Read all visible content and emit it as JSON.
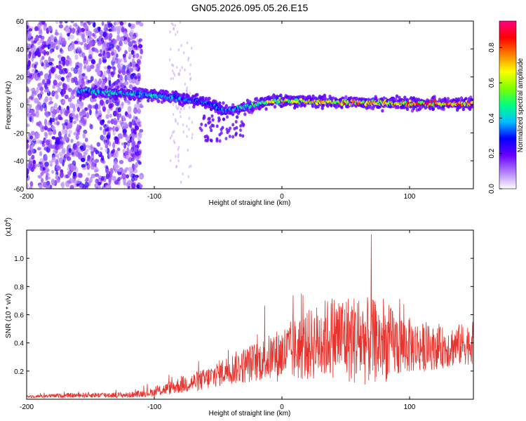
{
  "title": "GN05.2026.095.05.26.E15",
  "colors": {
    "axis": "#000000",
    "snr_line": "#e8322c",
    "spec_dot_low": "#cc99ff",
    "spec_dot_mid": "#7a1fff",
    "spec_high": "#ff2020"
  },
  "chart_data": [
    {
      "type": "heatmap",
      "name": "spectrogram",
      "title": "GN05.2026.095.05.26.E15",
      "xlabel": "Height of straight line (km)",
      "ylabel": "Frequency (Hz)",
      "xlim": [
        -200,
        150
      ],
      "ylim": [
        -60,
        60
      ],
      "x_ticks": [
        -200,
        -100,
        0,
        100
      ],
      "x_tick_labels": [
        "-200",
        "-100",
        "0",
        "100"
      ],
      "y_ticks": [
        60,
        40,
        20,
        0,
        -20,
        -40,
        -60
      ],
      "y_tick_labels": [
        "60",
        "40",
        "20",
        "0",
        "-20",
        "-40",
        "-60"
      ],
      "colorbar": {
        "label": "Normalized spectral amplitude",
        "range": [
          0,
          0.95
        ],
        "ticks": [
          0.0,
          0.2,
          0.4,
          0.6,
          0.8
        ],
        "tick_labels": [
          "0.0",
          "0.2",
          "0.4",
          "0.6",
          "0.8"
        ],
        "colormap": [
          "#ffffff",
          "#b07dff",
          "#6a00ff",
          "#0000ff",
          "#00c0ff",
          "#00ff80",
          "#80ff00",
          "#ffff00",
          "#ff8000",
          "#ff0000",
          "#ff0080"
        ]
      },
      "ridge": {
        "description_points_x": [
          -160,
          -140,
          -120,
          -100,
          -80,
          -60,
          -45,
          -30,
          -15,
          0,
          50,
          100,
          150
        ],
        "frequency_hz": [
          10,
          9,
          8,
          7,
          5,
          2,
          -4,
          -2,
          2,
          3,
          2,
          1,
          1
        ],
        "amplitude": [
          0.45,
          0.5,
          0.45,
          0.45,
          0.4,
          0.35,
          0.4,
          0.5,
          0.7,
          0.75,
          0.8,
          0.85,
          0.9
        ]
      },
      "noise_region_x": [
        -200,
        -110
      ]
    },
    {
      "type": "line",
      "name": "snr",
      "xlabel": "Height of straight line (km)",
      "ylabel": "SNR (10 * v/v)",
      "multiplier_label": "(x10",
      "multiplier_exponent": "4",
      "multiplier_close": ")",
      "xlim": [
        -200,
        150
      ],
      "ylim": [
        0,
        1.2
      ],
      "x_ticks": [
        -200,
        -100,
        0,
        100
      ],
      "x_tick_labels": [
        "-200",
        "-100",
        "0",
        "100"
      ],
      "y_ticks": [
        0.2,
        0.4,
        0.6,
        0.8,
        1.0
      ],
      "y_tick_labels": [
        "0.2",
        "0.4",
        "0.6",
        "0.8",
        "1.0"
      ],
      "series": [
        {
          "name": "SNR",
          "envelope_x": [
            -200,
            -150,
            -120,
            -100,
            -80,
            -60,
            -45,
            -30,
            -15,
            0,
            20,
            40,
            60,
            80,
            100,
            120,
            150
          ],
          "envelope_mean": [
            0.02,
            0.03,
            0.03,
            0.05,
            0.1,
            0.14,
            0.2,
            0.24,
            0.28,
            0.32,
            0.38,
            0.45,
            0.42,
            0.4,
            0.38,
            0.36,
            0.4
          ],
          "envelope_spread": [
            0.01,
            0.02,
            0.02,
            0.03,
            0.06,
            0.08,
            0.1,
            0.13,
            0.15,
            0.2,
            0.25,
            0.3,
            0.33,
            0.28,
            0.2,
            0.15,
            0.15
          ],
          "peak_x": 70,
          "peak_y": 1.17
        }
      ]
    }
  ]
}
